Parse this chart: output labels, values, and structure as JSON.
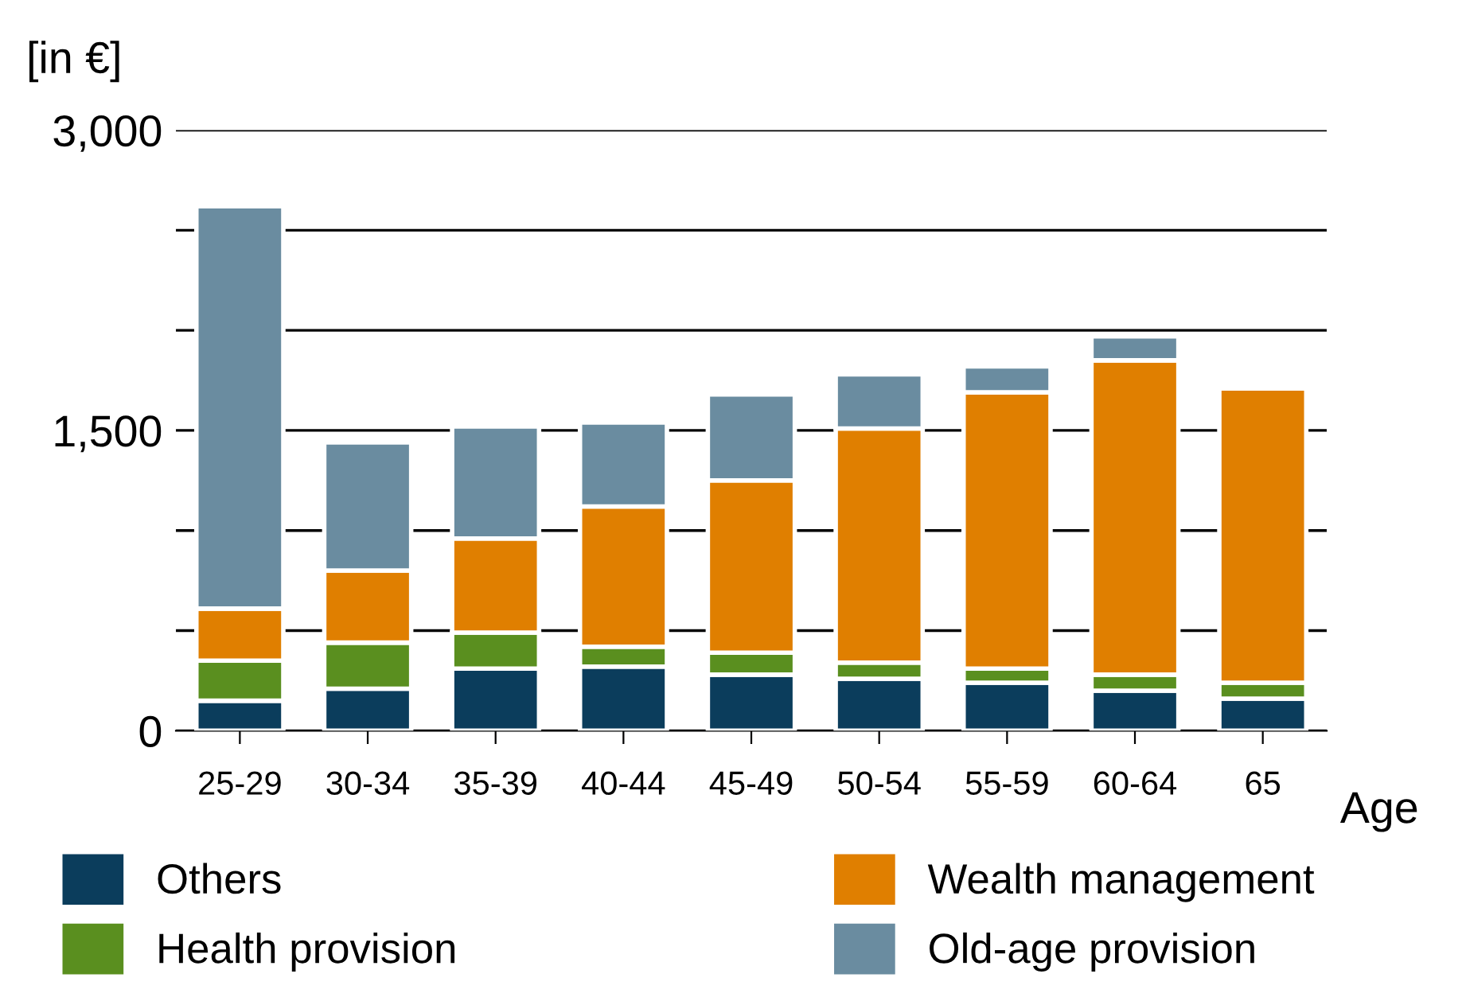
{
  "chart_data": {
    "type": "bar",
    "stacked": true,
    "ylabel": "[in €]",
    "xlabel": "Age",
    "categories": [
      "25-29",
      "30-34",
      "35-39",
      "40-44",
      "45-49",
      "50-54",
      "55-59",
      "60-64",
      "65"
    ],
    "series": [
      {
        "name": "Others",
        "color": "#0b3d5c",
        "values": [
          150,
          210,
          310,
          320,
          280,
          260,
          240,
          200,
          160
        ]
      },
      {
        "name": "Health provision",
        "color": "#5a8f1f",
        "values": [
          200,
          230,
          180,
          100,
          110,
          80,
          70,
          80,
          80
        ]
      },
      {
        "name": "Wealth management",
        "color": "#e07f00",
        "values": [
          260,
          360,
          470,
          700,
          860,
          1170,
          1380,
          1570,
          1470
        ]
      },
      {
        "name": "Old-age provision",
        "color": "#6a8ca0",
        "values": [
          2010,
          640,
          560,
          420,
          430,
          270,
          130,
          120,
          null
        ]
      }
    ],
    "ylim": [
      0,
      3000
    ],
    "yticks": [
      0,
      {
        "value": 500,
        "label": null
      },
      {
        "value": 1000,
        "label": null
      },
      {
        "value": 1500,
        "label": "1,500"
      },
      {
        "value": 2000,
        "label": null
      },
      {
        "value": 2500,
        "label": null
      },
      {
        "value": 3000,
        "label": "3,000"
      }
    ],
    "grid": "y",
    "legend": "bottom"
  }
}
